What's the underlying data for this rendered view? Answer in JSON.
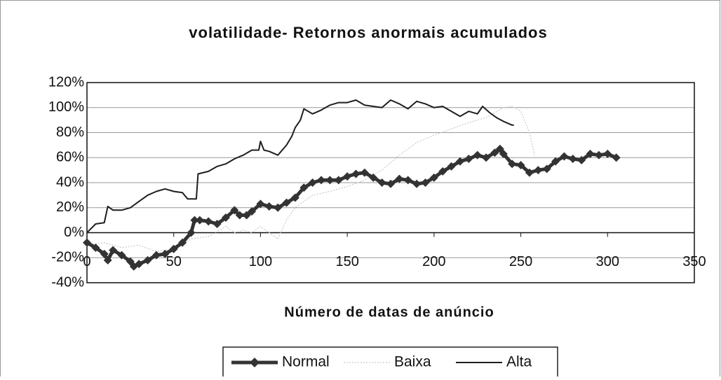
{
  "chart_data": {
    "type": "line",
    "title": "volatilidade- Retornos anormais acumulados",
    "x_label": "Número de datas de anúncio",
    "xlim": [
      0,
      350
    ],
    "xticks": [
      0,
      50,
      100,
      150,
      200,
      250,
      300,
      350
    ],
    "ylim": [
      -40,
      120
    ],
    "yticks": [
      {
        "value": -40,
        "label": "-40%"
      },
      {
        "value": -20,
        "label": "-20%"
      },
      {
        "value": 0,
        "label": "0%"
      },
      {
        "value": 20,
        "label": "20%"
      },
      {
        "value": 40,
        "label": "40%"
      },
      {
        "value": 60,
        "label": "60%"
      },
      {
        "value": 80,
        "label": "80%"
      },
      {
        "value": 100,
        "label": "100%"
      },
      {
        "value": 120,
        "label": "120%"
      }
    ],
    "grid": true,
    "legend_position": "bottom",
    "series": [
      {
        "name": "Normal",
        "color": "#333333",
        "width": 5,
        "marker": "diamond",
        "x": [
          0,
          5,
          10,
          12,
          15,
          20,
          25,
          27,
          30,
          35,
          40,
          45,
          50,
          55,
          60,
          62,
          65,
          70,
          75,
          80,
          85,
          88,
          92,
          95,
          100,
          105,
          110,
          115,
          120,
          125,
          130,
          135,
          140,
          145,
          150,
          155,
          160,
          165,
          170,
          175,
          180,
          185,
          190,
          195,
          200,
          205,
          210,
          215,
          220,
          225,
          230,
          235,
          238,
          240,
          245,
          250,
          255,
          260,
          265,
          270,
          275,
          280,
          285,
          290,
          295,
          300,
          305
        ],
        "values": [
          -8,
          -12,
          -17,
          -22,
          -14,
          -18,
          -23,
          -27,
          -25,
          -22,
          -18,
          -17,
          -13,
          -8,
          0,
          10,
          10,
          9,
          7,
          12,
          18,
          14,
          14,
          17,
          23,
          21,
          20,
          24,
          28,
          36,
          40,
          42,
          42,
          42,
          45,
          47,
          48,
          44,
          40,
          39,
          43,
          42,
          39,
          40,
          44,
          49,
          53,
          57,
          59,
          62,
          60,
          64,
          67,
          63,
          55,
          54,
          48,
          50,
          51,
          57,
          61,
          59,
          58,
          63,
          62,
          63,
          60
        ]
      },
      {
        "name": "Baixa",
        "color": "#c8c8c8",
        "width": 1.2,
        "dash": "2 2",
        "x": [
          0,
          10,
          20,
          30,
          40,
          50,
          60,
          70,
          80,
          85,
          90,
          95,
          100,
          105,
          110,
          115,
          120,
          125,
          130,
          140,
          150,
          160,
          170,
          180,
          190,
          200,
          210,
          220,
          230,
          240,
          245,
          250,
          255,
          258
        ],
        "values": [
          -10,
          -8,
          -12,
          -10,
          -15,
          -13,
          -5,
          -3,
          5,
          0,
          2,
          0,
          5,
          0,
          -5,
          10,
          20,
          25,
          30,
          33,
          37,
          42,
          50,
          62,
          72,
          78,
          83,
          88,
          92,
          100,
          101,
          97,
          80,
          62
        ]
      },
      {
        "name": "Alta",
        "color": "#1e1e1e",
        "width": 2,
        "x": [
          0,
          5,
          10,
          12,
          15,
          20,
          25,
          30,
          35,
          40,
          45,
          50,
          55,
          58,
          63,
          64,
          70,
          75,
          80,
          85,
          90,
          95,
          99,
          100,
          102,
          105,
          110,
          115,
          118,
          120,
          123,
          125,
          130,
          135,
          140,
          145,
          150,
          155,
          160,
          165,
          170,
          175,
          180,
          185,
          190,
          195,
          200,
          205,
          210,
          215,
          220,
          225,
          228,
          232,
          236,
          240,
          245,
          246
        ],
        "values": [
          0,
          7,
          8,
          21,
          18,
          18,
          20,
          25,
          30,
          33,
          35,
          33,
          32,
          27,
          27,
          47,
          49,
          53,
          55,
          59,
          62,
          66,
          66,
          73,
          66,
          65,
          62,
          70,
          77,
          84,
          90,
          99,
          95,
          98,
          102,
          104,
          104,
          106,
          102,
          101,
          100,
          106,
          103,
          99,
          105,
          103,
          100,
          101,
          97,
          93,
          97,
          95,
          101,
          96,
          92,
          89,
          86,
          86
        ]
      }
    ]
  }
}
